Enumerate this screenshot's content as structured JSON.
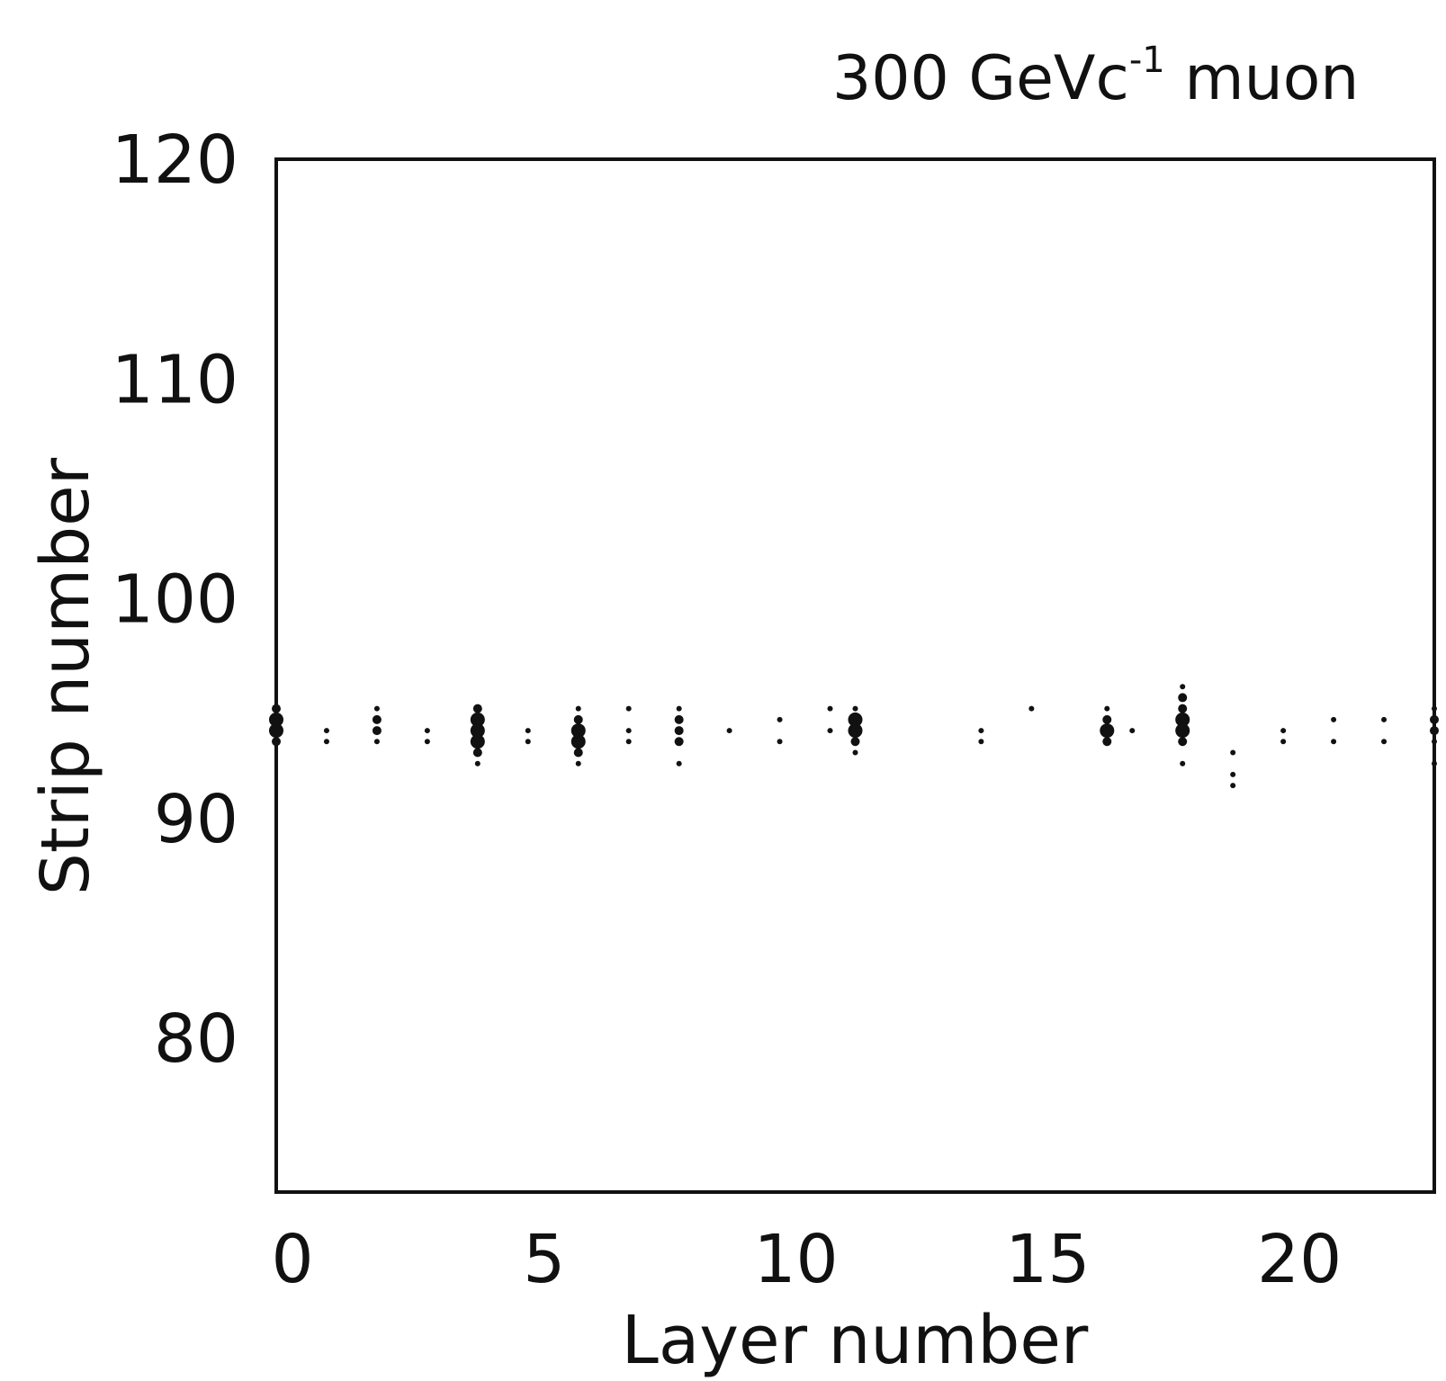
{
  "chart_data": {
    "type": "scatter",
    "title": "300 GeVc",
    "title_superscript": "-1",
    "title_suffix": " muon",
    "xlabel": "Layer number",
    "ylabel": "Strip number",
    "xlim": [
      0,
      23
    ],
    "ylim": [
      73,
      120
    ],
    "xticks": [
      0,
      5,
      10,
      15,
      20
    ],
    "yticks": [
      80,
      90,
      100,
      110,
      120
    ],
    "grid": false,
    "legend": "none",
    "marker_color": "#111111",
    "points": [
      {
        "x": 0,
        "y": 95,
        "size": 2
      },
      {
        "x": 0,
        "y": 94.5,
        "size": 3
      },
      {
        "x": 0,
        "y": 94,
        "size": 3
      },
      {
        "x": 0,
        "y": 93.5,
        "size": 2
      },
      {
        "x": 1,
        "y": 94,
        "size": 1
      },
      {
        "x": 1,
        "y": 93.5,
        "size": 1
      },
      {
        "x": 2,
        "y": 95,
        "size": 1
      },
      {
        "x": 2,
        "y": 94.5,
        "size": 2
      },
      {
        "x": 2,
        "y": 94,
        "size": 2
      },
      {
        "x": 2,
        "y": 93.5,
        "size": 1
      },
      {
        "x": 3,
        "y": 94,
        "size": 1
      },
      {
        "x": 3,
        "y": 93.5,
        "size": 1
      },
      {
        "x": 4,
        "y": 95,
        "size": 2
      },
      {
        "x": 4,
        "y": 94.5,
        "size": 3
      },
      {
        "x": 4,
        "y": 94,
        "size": 3
      },
      {
        "x": 4,
        "y": 93.5,
        "size": 3
      },
      {
        "x": 4,
        "y": 93,
        "size": 2
      },
      {
        "x": 4,
        "y": 92.5,
        "size": 1
      },
      {
        "x": 5,
        "y": 94,
        "size": 1
      },
      {
        "x": 5,
        "y": 93.5,
        "size": 1
      },
      {
        "x": 6,
        "y": 95,
        "size": 1
      },
      {
        "x": 6,
        "y": 94.5,
        "size": 2
      },
      {
        "x": 6,
        "y": 94,
        "size": 3
      },
      {
        "x": 6,
        "y": 93.5,
        "size": 3
      },
      {
        "x": 6,
        "y": 93,
        "size": 2
      },
      {
        "x": 6,
        "y": 92.5,
        "size": 1
      },
      {
        "x": 7,
        "y": 95,
        "size": 1
      },
      {
        "x": 7,
        "y": 94,
        "size": 1
      },
      {
        "x": 7,
        "y": 93.5,
        "size": 1
      },
      {
        "x": 8,
        "y": 95,
        "size": 1
      },
      {
        "x": 8,
        "y": 94.5,
        "size": 2
      },
      {
        "x": 8,
        "y": 94,
        "size": 2
      },
      {
        "x": 8,
        "y": 93.5,
        "size": 2
      },
      {
        "x": 8,
        "y": 92.5,
        "size": 1
      },
      {
        "x": 9,
        "y": 94,
        "size": 1
      },
      {
        "x": 10,
        "y": 94.5,
        "size": 1
      },
      {
        "x": 10,
        "y": 93.5,
        "size": 1
      },
      {
        "x": 11,
        "y": 95,
        "size": 1
      },
      {
        "x": 11,
        "y": 94,
        "size": 1
      },
      {
        "x": 11.5,
        "y": 95,
        "size": 1
      },
      {
        "x": 11.5,
        "y": 94.5,
        "size": 3
      },
      {
        "x": 11.5,
        "y": 94,
        "size": 3
      },
      {
        "x": 11.5,
        "y": 93.5,
        "size": 2
      },
      {
        "x": 11.5,
        "y": 93,
        "size": 1
      },
      {
        "x": 14,
        "y": 94,
        "size": 1
      },
      {
        "x": 14,
        "y": 93.5,
        "size": 1
      },
      {
        "x": 15,
        "y": 95,
        "size": 1
      },
      {
        "x": 16.5,
        "y": 95,
        "size": 1
      },
      {
        "x": 16.5,
        "y": 94.5,
        "size": 2
      },
      {
        "x": 16.5,
        "y": 94,
        "size": 3
      },
      {
        "x": 16.5,
        "y": 93.5,
        "size": 2
      },
      {
        "x": 17,
        "y": 94,
        "size": 1
      },
      {
        "x": 18,
        "y": 96,
        "size": 1
      },
      {
        "x": 18,
        "y": 95.5,
        "size": 2
      },
      {
        "x": 18,
        "y": 95,
        "size": 2
      },
      {
        "x": 18,
        "y": 94.5,
        "size": 3
      },
      {
        "x": 18,
        "y": 94,
        "size": 3
      },
      {
        "x": 18,
        "y": 93.5,
        "size": 2
      },
      {
        "x": 18,
        "y": 92.5,
        "size": 1
      },
      {
        "x": 19,
        "y": 93,
        "size": 1
      },
      {
        "x": 19,
        "y": 92,
        "size": 1
      },
      {
        "x": 19,
        "y": 91.5,
        "size": 1
      },
      {
        "x": 20,
        "y": 94,
        "size": 1
      },
      {
        "x": 20,
        "y": 93.5,
        "size": 1
      },
      {
        "x": 21,
        "y": 94.5,
        "size": 1
      },
      {
        "x": 21,
        "y": 93.5,
        "size": 1
      },
      {
        "x": 22,
        "y": 94.5,
        "size": 1
      },
      {
        "x": 22,
        "y": 93.5,
        "size": 1
      },
      {
        "x": 23,
        "y": 95,
        "size": 1
      },
      {
        "x": 23,
        "y": 94.5,
        "size": 2
      },
      {
        "x": 23,
        "y": 94,
        "size": 2
      },
      {
        "x": 23,
        "y": 93.5,
        "size": 1
      },
      {
        "x": 23,
        "y": 92.5,
        "size": 1
      }
    ]
  }
}
